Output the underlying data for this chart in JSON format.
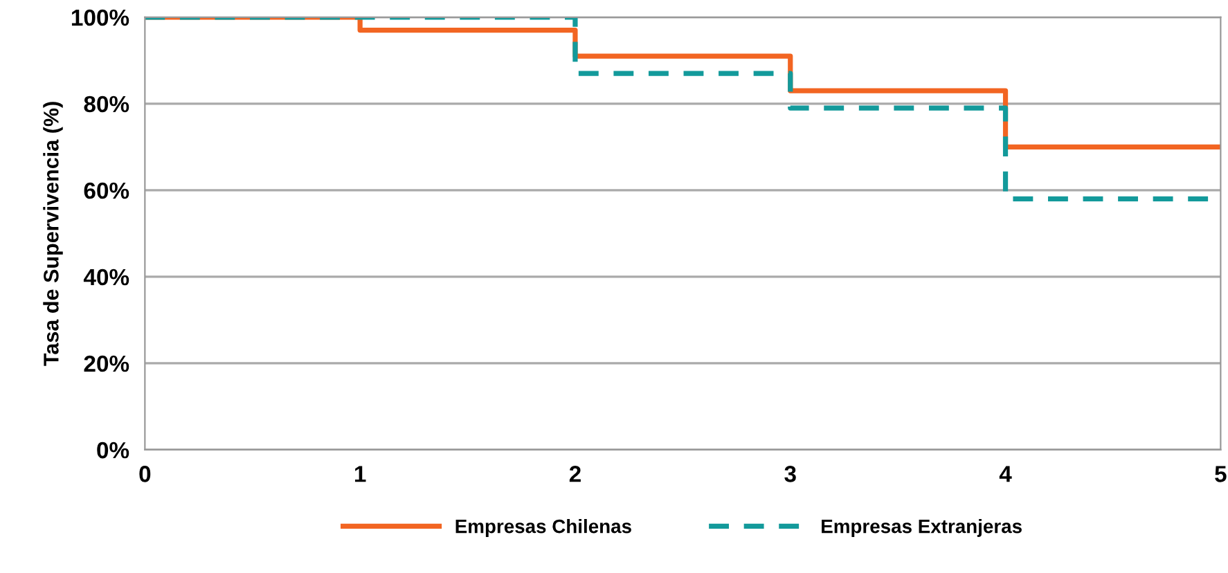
{
  "chart_data": {
    "type": "step",
    "ylabel": "Tasa de Supervivencia (%)",
    "x": [
      0,
      1,
      2,
      3,
      4,
      5
    ],
    "series": [
      {
        "name": "Empresas Chilenas",
        "color": "#f26522",
        "line_style": "solid",
        "values": [
          100,
          97,
          91,
          83,
          70,
          70
        ]
      },
      {
        "name": "Empresas Extranjeras",
        "color": "#139a9b",
        "line_style": "dashed",
        "values": [
          100,
          100,
          87,
          79,
          58,
          58
        ]
      }
    ],
    "xlim": [
      0,
      5
    ],
    "xticks": [
      0,
      1,
      2,
      3,
      4,
      5
    ],
    "ylim": [
      0,
      100
    ],
    "yticks": [
      {
        "value": 0,
        "label": "0%"
      },
      {
        "value": 20,
        "label": "20%"
      },
      {
        "value": 40,
        "label": "40%"
      },
      {
        "value": 60,
        "label": "60%"
      },
      {
        "value": 80,
        "label": "80%"
      },
      {
        "value": 100,
        "label": "100%"
      }
    ],
    "grid": "y",
    "legend": "bottom"
  }
}
